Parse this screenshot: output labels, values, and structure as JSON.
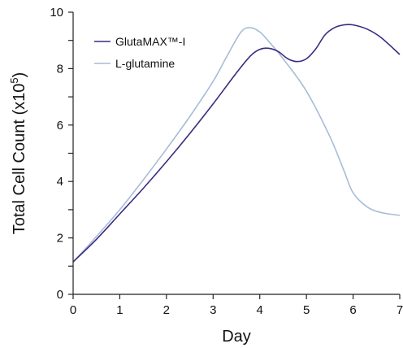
{
  "chart_data": {
    "type": "line",
    "xlabel": "Day",
    "ylabel_main": "Total Cell Count (x10",
    "ylabel_exp": "5",
    "ylabel_close": ")",
    "xlim": [
      0,
      7
    ],
    "ylim": [
      0,
      10
    ],
    "x_ticks": [
      0,
      1,
      2,
      3,
      4,
      5,
      6,
      7
    ],
    "y_ticks": [
      0,
      2,
      4,
      6,
      8,
      10
    ],
    "grid": false,
    "legend_position": "top-left",
    "series": [
      {
        "name": "GlutaMAX™-I",
        "color": "#3b2a82",
        "x": [
          0,
          0.5,
          1,
          1.5,
          2,
          2.5,
          3,
          3.5,
          3.8,
          4.0,
          4.2,
          4.4,
          4.6,
          4.8,
          5.0,
          5.2,
          5.4,
          5.6,
          5.8,
          6.0,
          6.3,
          6.6,
          7.0
        ],
        "y": [
          1.15,
          1.95,
          2.85,
          3.75,
          4.7,
          5.7,
          6.75,
          7.85,
          8.45,
          8.68,
          8.72,
          8.6,
          8.35,
          8.25,
          8.35,
          8.7,
          9.2,
          9.45,
          9.55,
          9.55,
          9.4,
          9.1,
          8.5
        ]
      },
      {
        "name": "L-glutamine",
        "color": "#a7bcd6",
        "x": [
          0,
          0.5,
          1,
          1.5,
          2,
          2.5,
          3,
          3.3,
          3.6,
          3.8,
          4.0,
          4.2,
          4.5,
          5.0,
          5.5,
          5.8,
          6.0,
          6.3,
          6.6,
          7.0
        ],
        "y": [
          1.15,
          2.05,
          3.0,
          4.05,
          5.15,
          6.3,
          7.55,
          8.45,
          9.3,
          9.45,
          9.3,
          8.95,
          8.35,
          7.2,
          5.6,
          4.4,
          3.6,
          3.1,
          2.9,
          2.8
        ]
      }
    ]
  }
}
